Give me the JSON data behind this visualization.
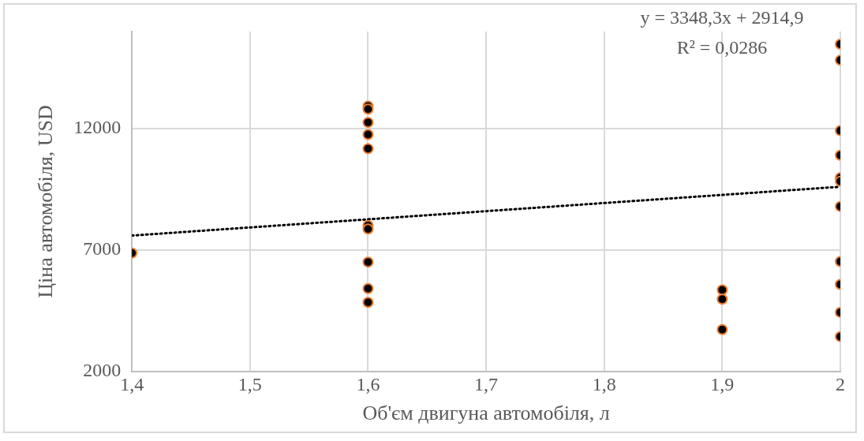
{
  "chart_data": {
    "type": "scatter",
    "xlabel": "Об'єм двигуна автомобіля, л",
    "ylabel": "Ціна автомобіля, USD",
    "xlim": [
      1.4,
      2
    ],
    "ylim": [
      2000,
      16000
    ],
    "xticks": [
      {
        "value": 1.4,
        "label": "1,4"
      },
      {
        "value": 1.5,
        "label": "1,5"
      },
      {
        "value": 1.6,
        "label": "1,6"
      },
      {
        "value": 1.7,
        "label": "1,7"
      },
      {
        "value": 1.8,
        "label": "1,8"
      },
      {
        "value": 1.9,
        "label": "1,9"
      },
      2
    ],
    "yticks": [
      2000,
      7000,
      12000
    ],
    "grid": true,
    "legend": false,
    "marker": "circle",
    "annotations": [
      "y = 3348,3x + 2914,9",
      "R² = 0,0286"
    ],
    "series": [
      {
        "color": "#000000",
        "x": [
          1.4,
          1.6,
          1.6,
          1.6,
          1.6,
          1.6,
          1.6,
          1.6,
          1.6,
          1.6,
          1.6,
          1.9,
          1.9,
          1.9,
          2,
          2,
          2,
          2,
          2,
          2,
          2,
          2,
          2,
          2,
          2
        ],
        "values": [
          6880,
          12930,
          12810,
          12260,
          11760,
          11180,
          8020,
          7870,
          6510,
          5420,
          4850,
          5360,
          4980,
          3730,
          15480,
          14820,
          11920,
          10910,
          9980,
          9840,
          8800,
          6530,
          5590,
          4440,
          3440
        ]
      },
      {
        "type": "line",
        "color": "#000000",
        "line_style": "dotted",
        "marker": "none",
        "x": [
          1.4,
          2
        ],
        "values": [
          7600,
          9610
        ]
      }
    ]
  }
}
